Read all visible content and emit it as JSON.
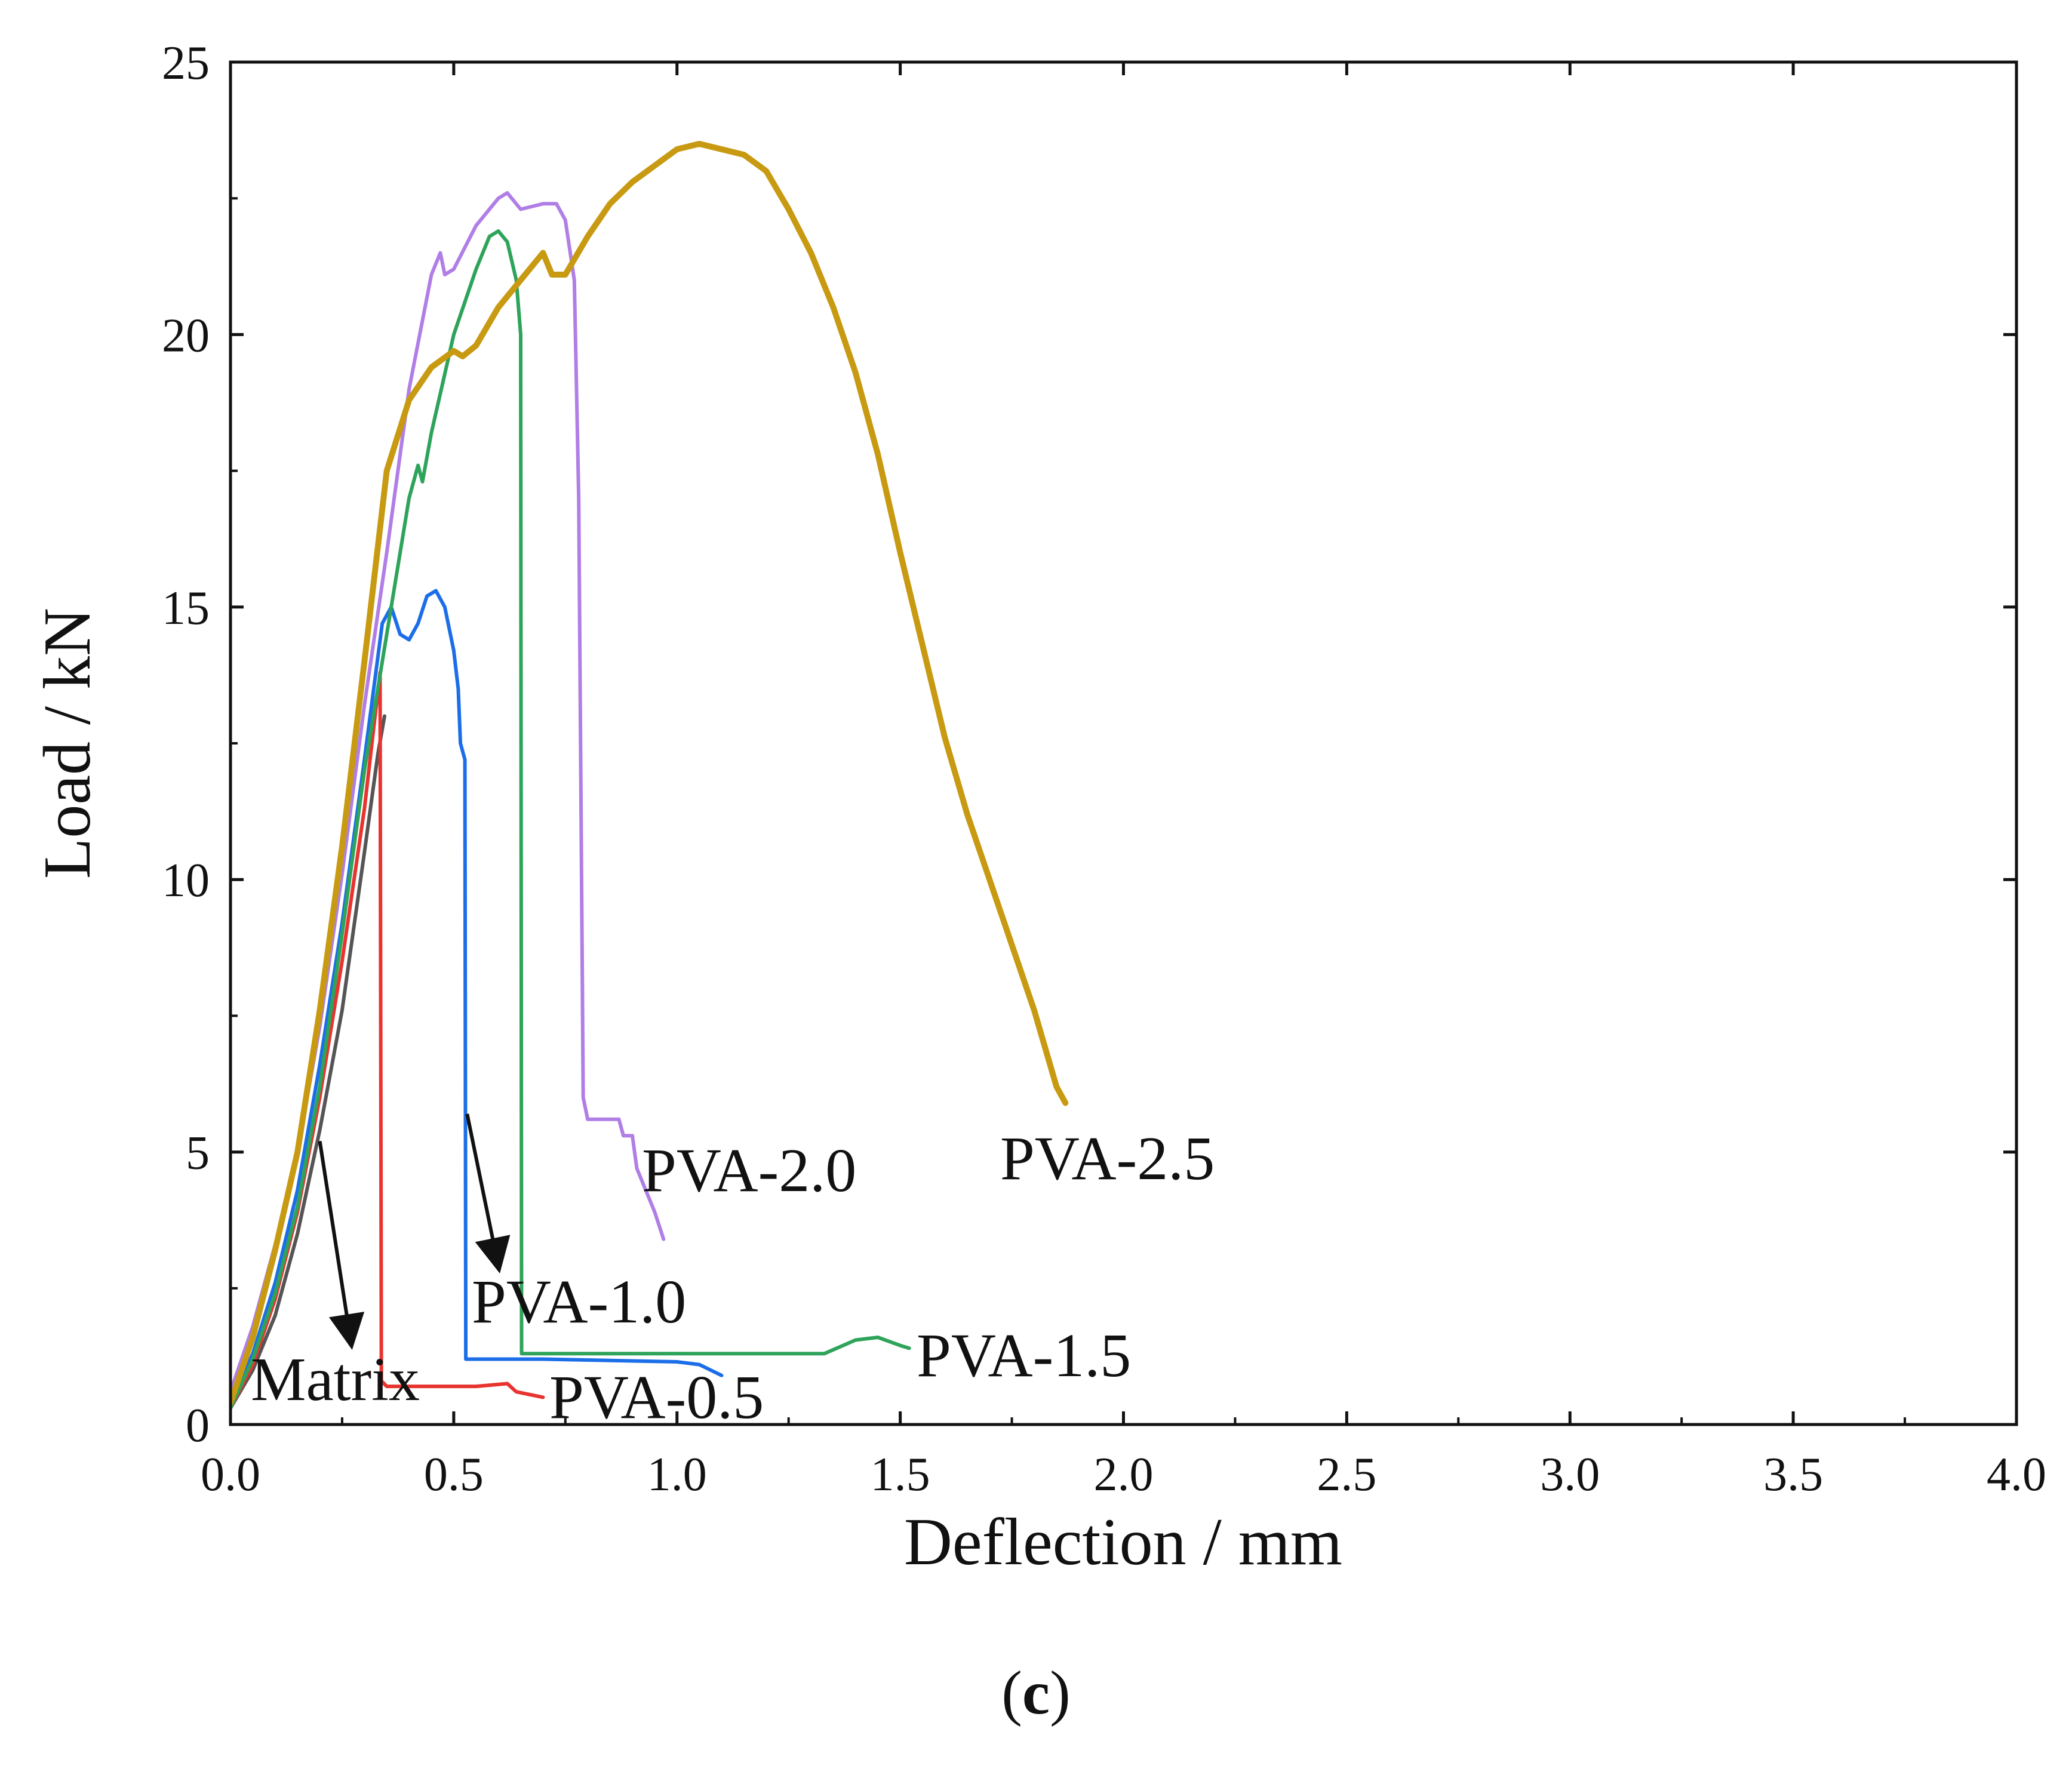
{
  "chart_data": {
    "type": "line",
    "title": "",
    "xlabel": "Deflection / mm",
    "ylabel": "Load / kN",
    "xlim": [
      0,
      4.0
    ],
    "ylim": [
      0,
      25
    ],
    "xticks": [
      "0.0",
      "0.5",
      "1.0",
      "1.5",
      "2.0",
      "2.5",
      "3.0",
      "3.5",
      "4.0"
    ],
    "yticks": [
      "0",
      "5",
      "10",
      "15",
      "20",
      "25"
    ],
    "caption_prefix": "(",
    "caption_letter": "c",
    "caption_suffix": ")",
    "grid": false,
    "series": [
      {
        "name": "Matrix",
        "label": "Matrix",
        "color": "#555555",
        "points": [
          [
            0.0,
            0.3
          ],
          [
            0.05,
            1.0
          ],
          [
            0.1,
            2.0
          ],
          [
            0.15,
            3.5
          ],
          [
            0.2,
            5.4
          ],
          [
            0.25,
            7.6
          ],
          [
            0.3,
            10.5
          ],
          [
            0.33,
            12.3
          ],
          [
            0.345,
            13.0
          ]
        ]
      },
      {
        "name": "PVA-0.5",
        "label": "PVA-0.5",
        "color": "#e8332f",
        "points": [
          [
            0.0,
            0.3
          ],
          [
            0.05,
            1.1
          ],
          [
            0.1,
            2.3
          ],
          [
            0.15,
            3.9
          ],
          [
            0.2,
            6.0
          ],
          [
            0.25,
            8.5
          ],
          [
            0.3,
            11.3
          ],
          [
            0.335,
            13.8
          ],
          [
            0.338,
            0.8
          ],
          [
            0.35,
            0.7
          ],
          [
            0.55,
            0.7
          ],
          [
            0.62,
            0.75
          ],
          [
            0.64,
            0.6
          ],
          [
            0.7,
            0.5
          ]
        ]
      },
      {
        "name": "PVA-1.0",
        "label": "PVA-1.0",
        "color": "#1c6ee8",
        "points": [
          [
            0.0,
            0.4
          ],
          [
            0.05,
            1.3
          ],
          [
            0.1,
            2.6
          ],
          [
            0.15,
            4.3
          ],
          [
            0.2,
            6.6
          ],
          [
            0.25,
            9.2
          ],
          [
            0.3,
            12.2
          ],
          [
            0.34,
            14.7
          ],
          [
            0.36,
            15.0
          ],
          [
            0.38,
            14.5
          ],
          [
            0.4,
            14.4
          ],
          [
            0.42,
            14.7
          ],
          [
            0.44,
            15.2
          ],
          [
            0.46,
            15.3
          ],
          [
            0.48,
            15.0
          ],
          [
            0.5,
            14.2
          ],
          [
            0.51,
            13.5
          ],
          [
            0.515,
            12.5
          ],
          [
            0.525,
            12.2
          ],
          [
            0.527,
            1.2
          ],
          [
            0.7,
            1.2
          ],
          [
            1.0,
            1.15
          ],
          [
            1.05,
            1.1
          ],
          [
            1.1,
            0.9
          ]
        ]
      },
      {
        "name": "PVA-1.5",
        "label": "PVA-1.5",
        "color": "#2ea35a",
        "points": [
          [
            0.0,
            0.3
          ],
          [
            0.05,
            1.2
          ],
          [
            0.1,
            2.4
          ],
          [
            0.15,
            4.0
          ],
          [
            0.2,
            6.2
          ],
          [
            0.25,
            9.0
          ],
          [
            0.3,
            12.0
          ],
          [
            0.35,
            14.5
          ],
          [
            0.4,
            17.0
          ],
          [
            0.42,
            17.6
          ],
          [
            0.43,
            17.3
          ],
          [
            0.45,
            18.2
          ],
          [
            0.5,
            20.0
          ],
          [
            0.55,
            21.2
          ],
          [
            0.58,
            21.8
          ],
          [
            0.6,
            21.9
          ],
          [
            0.62,
            21.7
          ],
          [
            0.64,
            21.0
          ],
          [
            0.65,
            20.0
          ],
          [
            0.652,
            1.3
          ],
          [
            1.0,
            1.3
          ],
          [
            1.33,
            1.3
          ],
          [
            1.4,
            1.55
          ],
          [
            1.45,
            1.6
          ],
          [
            1.5,
            1.45
          ],
          [
            1.52,
            1.4
          ]
        ]
      },
      {
        "name": "PVA-2.0",
        "label": "PVA-2.0",
        "color": "#b07ee6",
        "points": [
          [
            0.0,
            0.6
          ],
          [
            0.05,
            1.8
          ],
          [
            0.1,
            3.3
          ],
          [
            0.15,
            5.0
          ],
          [
            0.2,
            7.3
          ],
          [
            0.25,
            10.1
          ],
          [
            0.3,
            13.2
          ],
          [
            0.35,
            16.0
          ],
          [
            0.4,
            19.0
          ],
          [
            0.45,
            21.1
          ],
          [
            0.47,
            21.5
          ],
          [
            0.48,
            21.1
          ],
          [
            0.5,
            21.2
          ],
          [
            0.55,
            22.0
          ],
          [
            0.6,
            22.5
          ],
          [
            0.62,
            22.6
          ],
          [
            0.65,
            22.3
          ],
          [
            0.7,
            22.4
          ],
          [
            0.73,
            22.4
          ],
          [
            0.75,
            22.1
          ],
          [
            0.77,
            21.0
          ],
          [
            0.78,
            17.0
          ],
          [
            0.79,
            6.0
          ],
          [
            0.8,
            5.6
          ],
          [
            0.87,
            5.6
          ],
          [
            0.88,
            5.3
          ],
          [
            0.9,
            5.3
          ],
          [
            0.91,
            4.7
          ],
          [
            0.95,
            3.9
          ],
          [
            0.97,
            3.4
          ]
        ]
      },
      {
        "name": "PVA-2.5",
        "label": "PVA-2.5",
        "color": "#c89a12",
        "points": [
          [
            0.0,
            0.4
          ],
          [
            0.05,
            1.6
          ],
          [
            0.1,
            3.2
          ],
          [
            0.15,
            5.0
          ],
          [
            0.2,
            7.6
          ],
          [
            0.25,
            10.6
          ],
          [
            0.3,
            14.0
          ],
          [
            0.35,
            17.5
          ],
          [
            0.4,
            18.8
          ],
          [
            0.45,
            19.4
          ],
          [
            0.5,
            19.7
          ],
          [
            0.52,
            19.6
          ],
          [
            0.55,
            19.8
          ],
          [
            0.6,
            20.5
          ],
          [
            0.65,
            21.0
          ],
          [
            0.7,
            21.5
          ],
          [
            0.72,
            21.1
          ],
          [
            0.75,
            21.1
          ],
          [
            0.8,
            21.8
          ],
          [
            0.85,
            22.4
          ],
          [
            0.9,
            22.8
          ],
          [
            0.95,
            23.1
          ],
          [
            1.0,
            23.4
          ],
          [
            1.05,
            23.5
          ],
          [
            1.1,
            23.4
          ],
          [
            1.15,
            23.3
          ],
          [
            1.2,
            23.0
          ],
          [
            1.25,
            22.3
          ],
          [
            1.3,
            21.5
          ],
          [
            1.35,
            20.5
          ],
          [
            1.4,
            19.3
          ],
          [
            1.45,
            17.8
          ],
          [
            1.5,
            16.0
          ],
          [
            1.55,
            14.3
          ],
          [
            1.6,
            12.6
          ],
          [
            1.65,
            11.2
          ],
          [
            1.7,
            10.0
          ],
          [
            1.75,
            8.8
          ],
          [
            1.8,
            7.6
          ],
          [
            1.85,
            6.2
          ],
          [
            1.87,
            5.9
          ]
        ]
      }
    ],
    "annotations": [
      {
        "name": "matrix-arrow",
        "from": [
          0.2,
          5.2
        ],
        "to": [
          0.27,
          1.5
        ]
      },
      {
        "name": "pva-1-0-arrow",
        "from": [
          0.53,
          5.7
        ],
        "to": [
          0.6,
          2.9
        ]
      }
    ]
  }
}
